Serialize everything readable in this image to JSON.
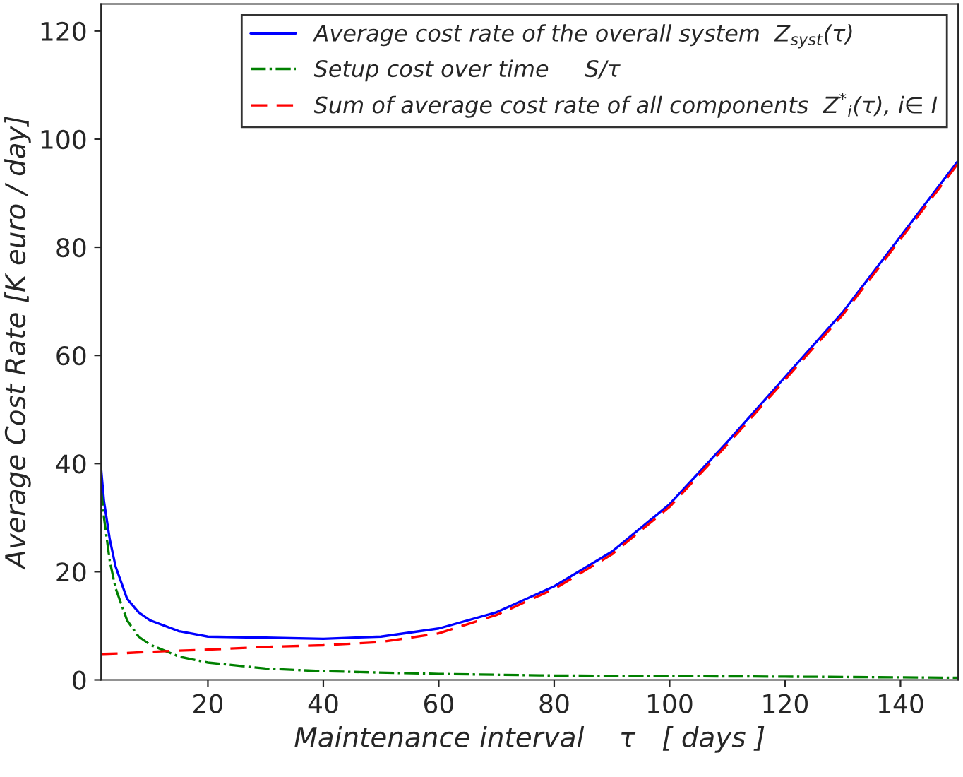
{
  "chart_data": {
    "type": "line",
    "xlabel": "Maintenance interval    τ   [ days ]",
    "ylabel": "Average Cost Rate [K euro / day]",
    "xlim": [
      1.5,
      150
    ],
    "ylim": [
      0,
      125
    ],
    "xticks": [
      20,
      40,
      60,
      80,
      100,
      120,
      140
    ],
    "yticks": [
      0,
      20,
      40,
      60,
      80,
      100,
      120
    ],
    "grid": false,
    "legend": "top right",
    "series": [
      {
        "name": "Average cost rate of the overall system  Z$_{syst}$(τ)",
        "color": "#0000ff",
        "line_style": "solid",
        "x": [
          1.5,
          2,
          3,
          4,
          6,
          8,
          10,
          15,
          20,
          30,
          40,
          50,
          60,
          70,
          80,
          90,
          100,
          110,
          120,
          130,
          140,
          150
        ],
        "values": [
          39,
          33,
          26,
          21,
          15,
          12.5,
          11,
          9,
          8,
          7.8,
          7.6,
          8,
          9.5,
          12.5,
          17.3,
          23.7,
          32.5,
          44,
          56,
          68,
          82,
          96
        ]
      },
      {
        "name": "Setup cost over time     S/τ",
        "color": "#008000",
        "line_style": "dashdot",
        "x": [
          1.5,
          2,
          3,
          4,
          6,
          8,
          10,
          15,
          20,
          30,
          40,
          60,
          80,
          100,
          120,
          150
        ],
        "values": [
          35,
          30,
          22,
          17,
          11,
          8,
          6.5,
          4.3,
          3.2,
          2.1,
          1.6,
          1.1,
          0.8,
          0.7,
          0.6,
          0.4
        ]
      },
      {
        "name": "Sum of average cost rate of all components  Z$^{*}$$_{i}$(τ), i∈ I",
        "color": "#ff0000",
        "line_style": "dashed",
        "x": [
          1.5,
          2,
          5,
          10,
          15,
          20,
          30,
          40,
          50,
          60,
          70,
          80,
          90,
          100,
          110,
          120,
          130,
          140,
          150
        ],
        "values": [
          4.8,
          4.8,
          4.9,
          5.2,
          5.4,
          5.6,
          6.1,
          6.4,
          7,
          8.6,
          12,
          16.8,
          23.2,
          32,
          43.5,
          55.5,
          67.5,
          81.5,
          95.5
        ]
      }
    ]
  }
}
